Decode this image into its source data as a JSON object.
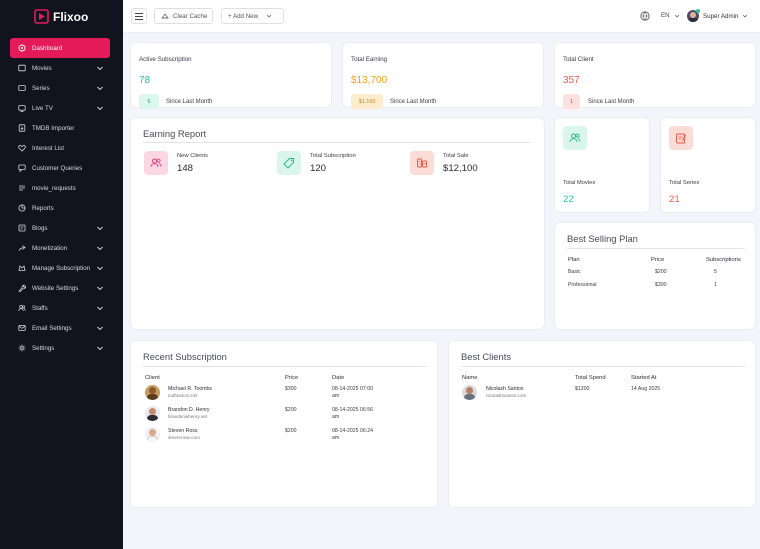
{
  "app": {
    "name": "Flixoo"
  },
  "sidebar": {
    "items": [
      {
        "label": "Dashboard",
        "icon": "dashboard-icon",
        "active": true,
        "chevron": false
      },
      {
        "label": "Movies",
        "icon": "movie-icon",
        "chevron": true
      },
      {
        "label": "Series",
        "icon": "series-icon",
        "chevron": true
      },
      {
        "label": "Live TV",
        "icon": "tv-icon",
        "chevron": true
      },
      {
        "label": "TMDB Importer",
        "icon": "import-icon",
        "chevron": false
      },
      {
        "label": "Interest List",
        "icon": "heart-icon",
        "chevron": false
      },
      {
        "label": "Customer Queries",
        "icon": "chat-icon",
        "chevron": false
      },
      {
        "label": "movie_requests",
        "icon": "request-icon",
        "chevron": false
      },
      {
        "label": "Reports",
        "icon": "report-icon",
        "chevron": false
      },
      {
        "label": "Blogs",
        "icon": "blog-icon",
        "chevron": true
      },
      {
        "label": "Monetization",
        "icon": "money-icon",
        "chevron": true
      },
      {
        "label": "Manage Subscription",
        "icon": "subscription-icon",
        "chevron": true
      },
      {
        "label": "Website Settings",
        "icon": "wrench-icon",
        "chevron": true
      },
      {
        "label": "Staffs",
        "icon": "staff-icon",
        "chevron": true
      },
      {
        "label": "Email Settings",
        "icon": "mail-icon",
        "chevron": true
      },
      {
        "label": "Settings",
        "icon": "gear-icon",
        "chevron": true
      }
    ]
  },
  "topbar": {
    "clear_cache": "Clear Cache",
    "add_new": "+ Add New",
    "language": "EN",
    "user": "Super Admin"
  },
  "stats": {
    "active_subscription": {
      "title": "Active Subscription",
      "value": "78",
      "badge": "6",
      "note": "Since Last Month",
      "color": "#22c79a"
    },
    "total_earning": {
      "title": "Total Earning",
      "value": "$13,700",
      "badge": "$1,100",
      "note": "Since Last Month",
      "color": "#f0a11a"
    },
    "total_client": {
      "title": "Total Client",
      "value": "357",
      "badge": "1",
      "note": "Since Last Month",
      "color": "#ef5a4a"
    }
  },
  "earning_report": {
    "title": "Earning Report",
    "items": [
      {
        "label": "New Clients",
        "value": "148"
      },
      {
        "label": "Total Subscription",
        "value": "120"
      },
      {
        "label": "Total Sale",
        "value": "$12,100"
      }
    ]
  },
  "totals": {
    "movies": {
      "label": "Total Movies",
      "value": "22"
    },
    "series": {
      "label": "Total Series",
      "value": "21"
    }
  },
  "best_selling_plan": {
    "title": "Best Selling Plan",
    "headers": [
      "Plan",
      "Price",
      "Subscriptions"
    ],
    "rows": [
      [
        "Basic",
        "$200",
        "5"
      ],
      [
        "Professional",
        "$300",
        "1"
      ]
    ]
  },
  "recent_subscription": {
    "title": "Recent Subscription",
    "headers": [
      "Client",
      "Price",
      "Date"
    ],
    "rows": [
      {
        "name": "Michael R. Toombs",
        "email": "mdfosdoro.net",
        "price": "$300",
        "date": "08-14-2025 07:00",
        "time2": "am"
      },
      {
        "name": "Brandon D. Henry",
        "email": "brandonwhenry.net",
        "price": "$200",
        "date": "08-14-2025 06:56",
        "time2": "am"
      },
      {
        "name": "Steven Ross",
        "email": "stevecross.com",
        "price": "$200",
        "date": "08-14-2025 06:24",
        "time2": "am"
      }
    ]
  },
  "best_clients": {
    "title": "Best Clients",
    "headers": [
      "Name",
      "Total Spend",
      "Started At"
    ],
    "rows": [
      {
        "name": "Nicolash Santos",
        "email": "nicolashsantos.com",
        "spend": "$1200",
        "started": "14 Aug 2025"
      }
    ]
  }
}
